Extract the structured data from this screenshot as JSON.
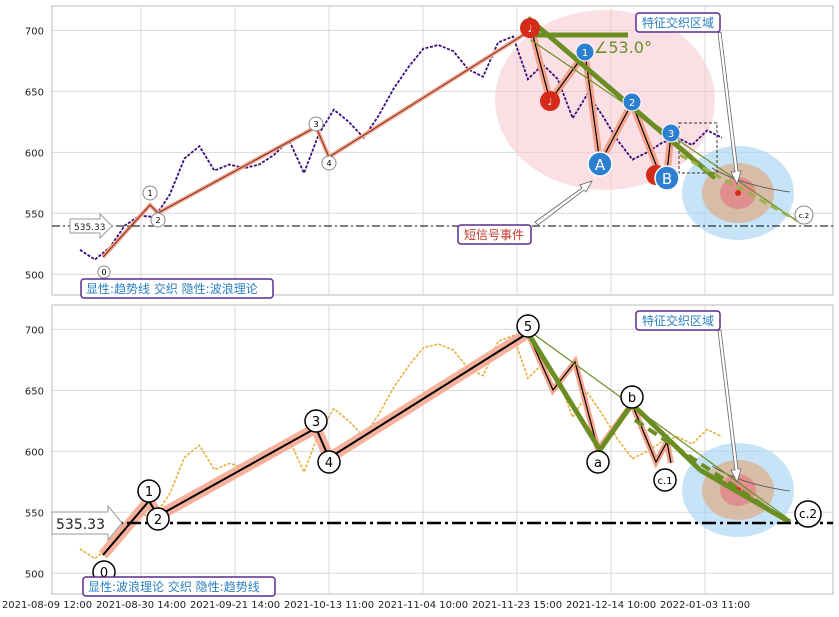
{
  "chart_data": {
    "type": "line",
    "x_ticks": [
      "2021-08-09 12:00",
      "2021-08-30 14:00",
      "2021-09-21 14:00",
      "2021-10-13 11:00",
      "2021-11-04 10:00",
      "2021-11-23 15:00",
      "2021-12-14 10:00",
      "2022-01-03 11:00"
    ],
    "y_ticks": [
      500,
      550,
      600,
      650,
      700
    ],
    "ylim": [
      483,
      720
    ],
    "grid": true,
    "reference_level": 535.33,
    "reference_label": "535.33",
    "price_series_approx": {
      "x_index": [
        0,
        4,
        8,
        12,
        16,
        20,
        24,
        28,
        32,
        36,
        40,
        44,
        48,
        52,
        56,
        60,
        64,
        68,
        72,
        76,
        80,
        84,
        88,
        92,
        96,
        100,
        104,
        108,
        112,
        116,
        120,
        124,
        128,
        132,
        136,
        140,
        144,
        148,
        152,
        156,
        160,
        164,
        168,
        172
      ],
      "close": [
        520,
        512,
        522,
        540,
        548,
        547,
        565,
        595,
        605,
        585,
        590,
        587,
        590,
        598,
        610,
        583,
        615,
        635,
        625,
        612,
        630,
        652,
        670,
        685,
        688,
        683,
        668,
        662,
        690,
        695,
        660,
        672,
        660,
        628,
        648,
        630,
        610,
        594,
        600,
        608,
        612,
        606,
        618,
        612
      ]
    },
    "waves": {
      "impulse_labels": [
        "0",
        "1",
        "2",
        "3",
        "4",
        "5"
      ],
      "impulse_values": [
        505,
        555,
        545,
        616,
        598,
        698
      ],
      "correction_labels": [
        "a",
        "b",
        "c.1",
        "c.2"
      ],
      "correction_values": [
        597,
        632,
        580,
        536
      ]
    },
    "top_panel": {
      "angle_label": "∠53.0°",
      "zone_label": "特征交织区域",
      "signal_label": "短信号事件",
      "caption": "显性:趋势线 交织 隐性:波浪理论",
      "abc_labels": [
        "A",
        "B",
        "1",
        "2",
        "3"
      ],
      "note_glyph": "♩",
      "point_labels": [
        "0",
        "1",
        "2",
        "3",
        "4",
        "c.2"
      ]
    },
    "bottom_panel": {
      "zone_label": "特征交织区域",
      "caption": "显性:波浪理论 交织 隐性:趋势线"
    },
    "colors": {
      "top_price": "#3a1078",
      "bottom_price": "#e8b040",
      "trend": "#6b8e23",
      "channel": "#f4a48c",
      "zone_red": "#f6c7cf",
      "zone_blue": "#a8d4f2",
      "marker_red": "#d42a1a",
      "marker_blue": "#2c7fd1",
      "label_box": "#5b2a8e",
      "label_text": "#2a7fc0"
    }
  }
}
